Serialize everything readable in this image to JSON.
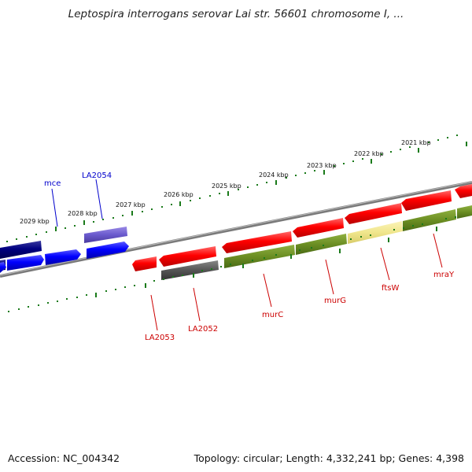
{
  "title": "Leptospira interrogans serovar Lai str. 56601 chromosome I, ...",
  "accession": "Accession: NC_004342",
  "summary": "Topology: circular; Length: 4,332,241 bp; Genes: 4,398",
  "colors": {
    "backbone": "#8a8a8a",
    "tick": "#1a7a1a",
    "red": "#ff0000",
    "blue": "#0000ff",
    "navy": "#000080",
    "purple": "#6a5acd",
    "olive": "#6b8e23",
    "gray": "#555555",
    "yellow": "#f0e68c",
    "label_red": "#cc0000",
    "label_blue": "#0000cc"
  },
  "kbp_labels": [
    "2029 kbp",
    "2028 kbp",
    "2027 kbp",
    "2026 kbp",
    "2025 kbp",
    "2024 kbp",
    "2023 kbp",
    "2022 kbp",
    "2021 kbp"
  ],
  "gene_labels_top": [
    "mce",
    "LA2054"
  ],
  "gene_labels_bottom": [
    "LA2053",
    "LA2052",
    "murC",
    "murG",
    "ftsW",
    "mraY"
  ]
}
